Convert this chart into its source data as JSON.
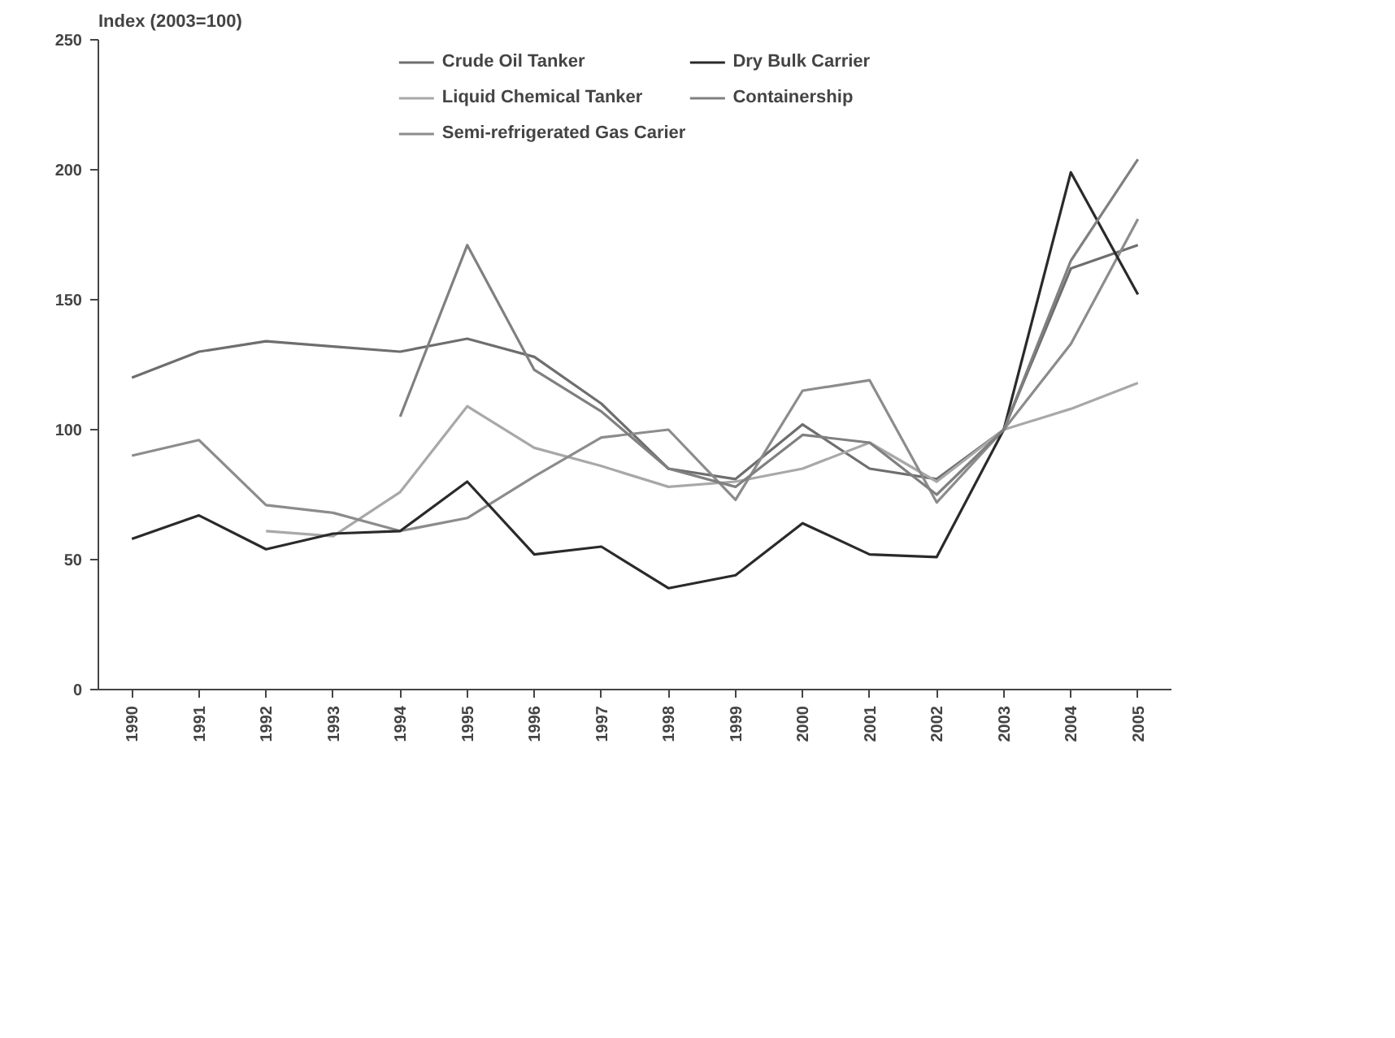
{
  "chart_data": {
    "type": "line",
    "ylabel": "Index (2003=100)",
    "categories": [
      "1990",
      "1991",
      "1992",
      "1993",
      "1994",
      "1995",
      "1996",
      "1997",
      "1998",
      "1999",
      "2000",
      "2001",
      "2002",
      "2003",
      "2004",
      "2005"
    ],
    "ylim": [
      0,
      250
    ],
    "yticks": [
      0,
      50,
      100,
      150,
      200,
      250
    ],
    "grid": false,
    "legend": "top",
    "marker": "none",
    "line_style": "solid",
    "series": [
      {
        "name": "Crude Oil Tanker",
        "color": "#6e6e6e",
        "values": [
          120,
          130,
          134,
          132,
          130,
          135,
          128,
          110,
          85,
          81,
          102,
          85,
          81,
          100,
          162,
          171
        ]
      },
      {
        "name": "Liquid Chemical Tanker",
        "color": "#a8a8a8",
        "values": [
          null,
          null,
          61,
          59,
          76,
          109,
          93,
          86,
          78,
          80,
          85,
          95,
          80,
          100,
          108,
          118
        ]
      },
      {
        "name": "Semi-refrigerated Gas Carier",
        "color": "#8c8c8c",
        "values": [
          90,
          96,
          71,
          68,
          61,
          66,
          82,
          97,
          100,
          73,
          115,
          119,
          72,
          100,
          133,
          181
        ]
      },
      {
        "name": "Dry Bulk Carrier",
        "color": "#2a2a2a",
        "values": [
          58,
          67,
          54,
          60,
          61,
          80,
          52,
          55,
          39,
          44,
          64,
          52,
          51,
          100,
          199,
          152
        ]
      },
      {
        "name": "Containership",
        "color": "#808080",
        "values": [
          null,
          null,
          null,
          null,
          105,
          171,
          123,
          107,
          85,
          78,
          98,
          95,
          75,
          100,
          165,
          204
        ]
      }
    ]
  }
}
